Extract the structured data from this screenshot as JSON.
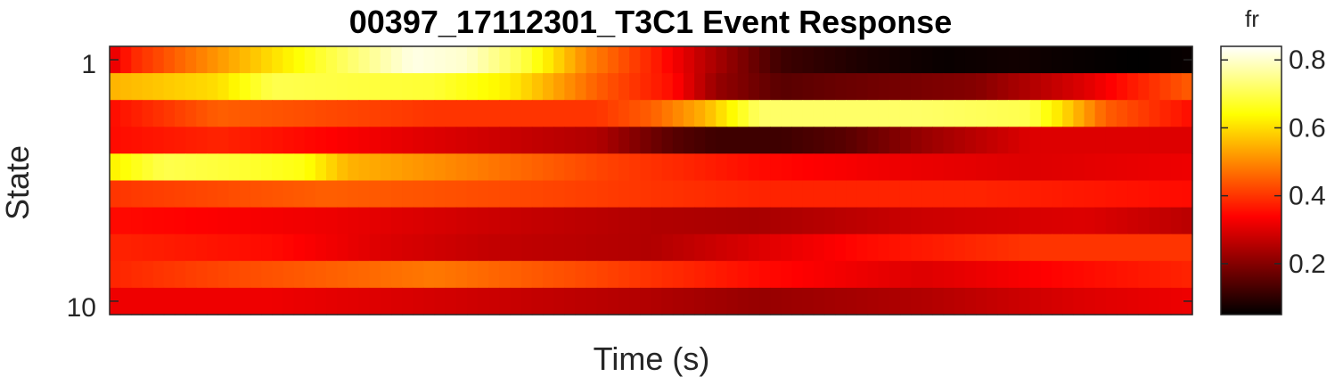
{
  "chart_data": {
    "type": "heatmap",
    "title": "00397_17112301_T3C1 Event Response",
    "xlabel": "Time (s)",
    "ylabel": "State",
    "y_tick_labels": [
      "1",
      "10"
    ],
    "x_tick_labels": [],
    "colorbar": {
      "label": "fr",
      "colormap": "hot",
      "clim": [
        0.05,
        0.84
      ],
      "ticks": [
        "0.2",
        "0.4",
        "0.6",
        "0.8"
      ],
      "tick_values": [
        0.2,
        0.4,
        0.6,
        0.8
      ]
    },
    "rows": [
      "1",
      "2",
      "3",
      "4",
      "5",
      "6",
      "7",
      "8",
      "9",
      "10"
    ],
    "n_time_bins": 100,
    "keyframes": [
      {
        "t": [
          0,
          0.02,
          0.06,
          0.15,
          0.22,
          0.28,
          0.33,
          0.38,
          0.44,
          0.5,
          0.55,
          0.62,
          0.7,
          0.77,
          0.84,
          0.89,
          0.95,
          1
        ],
        "v": [
          0.3,
          0.38,
          0.45,
          0.6,
          0.72,
          0.82,
          0.8,
          0.7,
          0.5,
          0.38,
          0.26,
          0.12,
          0.08,
          0.06,
          0.07,
          0.06,
          0.05,
          0.06
        ]
      },
      {
        "t": [
          0,
          0.1,
          0.15,
          0.3,
          0.37,
          0.45,
          0.52,
          0.56,
          0.62,
          0.68,
          0.8,
          0.9,
          1
        ],
        "v": [
          0.55,
          0.6,
          0.7,
          0.68,
          0.62,
          0.45,
          0.35,
          0.22,
          0.15,
          0.17,
          0.2,
          0.3,
          0.45
        ]
      },
      {
        "t": [
          0,
          0.1,
          0.3,
          0.45,
          0.5,
          0.55,
          0.6,
          0.75,
          0.85,
          0.88,
          0.92,
          1
        ],
        "v": [
          0.35,
          0.45,
          0.4,
          0.4,
          0.45,
          0.55,
          0.72,
          0.72,
          0.7,
          0.6,
          0.45,
          0.35
        ]
      },
      {
        "t": [
          0,
          0.1,
          0.3,
          0.45,
          0.52,
          0.56,
          0.62,
          0.68,
          0.75,
          0.85,
          1
        ],
        "v": [
          0.35,
          0.38,
          0.3,
          0.25,
          0.15,
          0.12,
          0.12,
          0.15,
          0.22,
          0.3,
          0.3
        ]
      },
      {
        "t": [
          0,
          0.05,
          0.12,
          0.18,
          0.22,
          0.35,
          0.45,
          0.6,
          0.72,
          0.85,
          1
        ],
        "v": [
          0.62,
          0.7,
          0.68,
          0.65,
          0.55,
          0.48,
          0.42,
          0.35,
          0.32,
          0.3,
          0.32
        ]
      },
      {
        "t": [
          0,
          0.2,
          0.4,
          0.6,
          0.8,
          1
        ],
        "v": [
          0.4,
          0.45,
          0.42,
          0.38,
          0.38,
          0.35
        ]
      },
      {
        "t": [
          0,
          0.2,
          0.35,
          0.5,
          0.6,
          0.75,
          0.9,
          1
        ],
        "v": [
          0.35,
          0.32,
          0.28,
          0.25,
          0.24,
          0.28,
          0.3,
          0.26
        ]
      },
      {
        "t": [
          0,
          0.15,
          0.25,
          0.35,
          0.5,
          0.6,
          0.7,
          0.85,
          1
        ],
        "v": [
          0.38,
          0.35,
          0.3,
          0.27,
          0.25,
          0.3,
          0.35,
          0.4,
          0.4
        ]
      },
      {
        "t": [
          0,
          0.1,
          0.3,
          0.45,
          0.6,
          0.75,
          0.9,
          1
        ],
        "v": [
          0.38,
          0.42,
          0.48,
          0.42,
          0.35,
          0.3,
          0.35,
          0.38
        ]
      },
      {
        "t": [
          0,
          0.15,
          0.35,
          0.5,
          0.6,
          0.75,
          0.9,
          1
        ],
        "v": [
          0.32,
          0.32,
          0.28,
          0.25,
          0.22,
          0.25,
          0.3,
          0.32
        ]
      }
    ]
  }
}
